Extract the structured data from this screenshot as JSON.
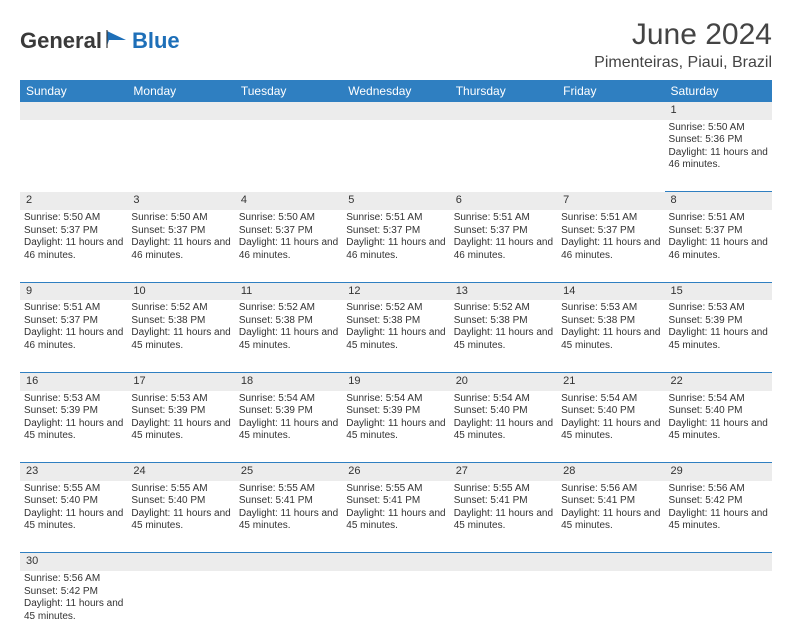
{
  "brand": {
    "part1": "General",
    "part2": "Blue"
  },
  "title": "June 2024",
  "location": "Pimenteiras, Piaui, Brazil",
  "colors": {
    "header_bg": "#2f7fc1",
    "header_text": "#ffffff",
    "daynum_bg": "#ececec",
    "border": "#2f7fc1",
    "brand_blue": "#1e6fb8",
    "text": "#333333"
  },
  "weekdays": [
    "Sunday",
    "Monday",
    "Tuesday",
    "Wednesday",
    "Thursday",
    "Friday",
    "Saturday"
  ],
  "weeks": [
    [
      null,
      null,
      null,
      null,
      null,
      null,
      {
        "d": "1",
        "sr": "5:50 AM",
        "ss": "5:36 PM",
        "dl": "11 hours and 46 minutes."
      }
    ],
    [
      {
        "d": "2",
        "sr": "5:50 AM",
        "ss": "5:37 PM",
        "dl": "11 hours and 46 minutes."
      },
      {
        "d": "3",
        "sr": "5:50 AM",
        "ss": "5:37 PM",
        "dl": "11 hours and 46 minutes."
      },
      {
        "d": "4",
        "sr": "5:50 AM",
        "ss": "5:37 PM",
        "dl": "11 hours and 46 minutes."
      },
      {
        "d": "5",
        "sr": "5:51 AM",
        "ss": "5:37 PM",
        "dl": "11 hours and 46 minutes."
      },
      {
        "d": "6",
        "sr": "5:51 AM",
        "ss": "5:37 PM",
        "dl": "11 hours and 46 minutes."
      },
      {
        "d": "7",
        "sr": "5:51 AM",
        "ss": "5:37 PM",
        "dl": "11 hours and 46 minutes."
      },
      {
        "d": "8",
        "sr": "5:51 AM",
        "ss": "5:37 PM",
        "dl": "11 hours and 46 minutes."
      }
    ],
    [
      {
        "d": "9",
        "sr": "5:51 AM",
        "ss": "5:37 PM",
        "dl": "11 hours and 46 minutes."
      },
      {
        "d": "10",
        "sr": "5:52 AM",
        "ss": "5:38 PM",
        "dl": "11 hours and 45 minutes."
      },
      {
        "d": "11",
        "sr": "5:52 AM",
        "ss": "5:38 PM",
        "dl": "11 hours and 45 minutes."
      },
      {
        "d": "12",
        "sr": "5:52 AM",
        "ss": "5:38 PM",
        "dl": "11 hours and 45 minutes."
      },
      {
        "d": "13",
        "sr": "5:52 AM",
        "ss": "5:38 PM",
        "dl": "11 hours and 45 minutes."
      },
      {
        "d": "14",
        "sr": "5:53 AM",
        "ss": "5:38 PM",
        "dl": "11 hours and 45 minutes."
      },
      {
        "d": "15",
        "sr": "5:53 AM",
        "ss": "5:39 PM",
        "dl": "11 hours and 45 minutes."
      }
    ],
    [
      {
        "d": "16",
        "sr": "5:53 AM",
        "ss": "5:39 PM",
        "dl": "11 hours and 45 minutes."
      },
      {
        "d": "17",
        "sr": "5:53 AM",
        "ss": "5:39 PM",
        "dl": "11 hours and 45 minutes."
      },
      {
        "d": "18",
        "sr": "5:54 AM",
        "ss": "5:39 PM",
        "dl": "11 hours and 45 minutes."
      },
      {
        "d": "19",
        "sr": "5:54 AM",
        "ss": "5:39 PM",
        "dl": "11 hours and 45 minutes."
      },
      {
        "d": "20",
        "sr": "5:54 AM",
        "ss": "5:40 PM",
        "dl": "11 hours and 45 minutes."
      },
      {
        "d": "21",
        "sr": "5:54 AM",
        "ss": "5:40 PM",
        "dl": "11 hours and 45 minutes."
      },
      {
        "d": "22",
        "sr": "5:54 AM",
        "ss": "5:40 PM",
        "dl": "11 hours and 45 minutes."
      }
    ],
    [
      {
        "d": "23",
        "sr": "5:55 AM",
        "ss": "5:40 PM",
        "dl": "11 hours and 45 minutes."
      },
      {
        "d": "24",
        "sr": "5:55 AM",
        "ss": "5:40 PM",
        "dl": "11 hours and 45 minutes."
      },
      {
        "d": "25",
        "sr": "5:55 AM",
        "ss": "5:41 PM",
        "dl": "11 hours and 45 minutes."
      },
      {
        "d": "26",
        "sr": "5:55 AM",
        "ss": "5:41 PM",
        "dl": "11 hours and 45 minutes."
      },
      {
        "d": "27",
        "sr": "5:55 AM",
        "ss": "5:41 PM",
        "dl": "11 hours and 45 minutes."
      },
      {
        "d": "28",
        "sr": "5:56 AM",
        "ss": "5:41 PM",
        "dl": "11 hours and 45 minutes."
      },
      {
        "d": "29",
        "sr": "5:56 AM",
        "ss": "5:42 PM",
        "dl": "11 hours and 45 minutes."
      }
    ],
    [
      {
        "d": "30",
        "sr": "5:56 AM",
        "ss": "5:42 PM",
        "dl": "11 hours and 45 minutes."
      },
      null,
      null,
      null,
      null,
      null,
      null
    ]
  ],
  "labels": {
    "sunrise": "Sunrise:",
    "sunset": "Sunset:",
    "daylight": "Daylight:"
  }
}
